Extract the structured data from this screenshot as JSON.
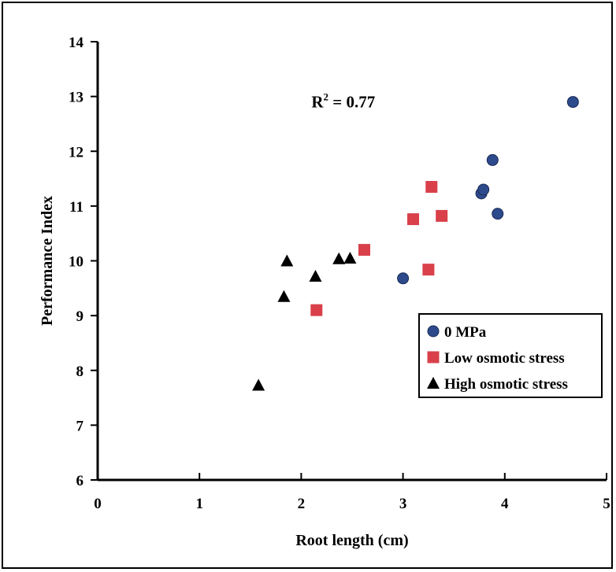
{
  "chart_data": {
    "type": "scatter",
    "title": "",
    "xlabel": "Root length (cm)",
    "ylabel": "Performance Index",
    "xlim": [
      0,
      5
    ],
    "ylim": [
      6,
      14
    ],
    "xticks": [
      0,
      1,
      2,
      3,
      4,
      5
    ],
    "yticks": [
      6,
      7,
      8,
      9,
      10,
      11,
      12,
      13,
      14
    ],
    "grid": false,
    "legend_position": "bottom-right",
    "annotation": {
      "base": "R",
      "sup": "2",
      "rest": " = 0.77"
    },
    "series": [
      {
        "name": "0 MPa",
        "marker": "circle",
        "color": "#2d4a8c",
        "points": [
          {
            "x": 3.0,
            "y": 9.68
          },
          {
            "x": 3.77,
            "y": 11.23
          },
          {
            "x": 3.79,
            "y": 11.3
          },
          {
            "x": 3.88,
            "y": 11.84
          },
          {
            "x": 3.93,
            "y": 10.86
          },
          {
            "x": 4.67,
            "y": 12.9
          }
        ]
      },
      {
        "name": "Low osmotic stress",
        "marker": "square",
        "color": "#d9404a",
        "points": [
          {
            "x": 2.15,
            "y": 9.1
          },
          {
            "x": 2.62,
            "y": 10.2
          },
          {
            "x": 3.1,
            "y": 10.76
          },
          {
            "x": 3.25,
            "y": 9.84
          },
          {
            "x": 3.28,
            "y": 11.35
          },
          {
            "x": 3.38,
            "y": 10.82
          }
        ]
      },
      {
        "name": "High osmotic stress",
        "marker": "triangle",
        "color": "#000000",
        "points": [
          {
            "x": 1.58,
            "y": 7.73
          },
          {
            "x": 1.83,
            "y": 9.35
          },
          {
            "x": 1.86,
            "y": 10.0
          },
          {
            "x": 2.14,
            "y": 9.72
          },
          {
            "x": 2.37,
            "y": 10.04
          },
          {
            "x": 2.48,
            "y": 10.05
          }
        ]
      }
    ]
  }
}
